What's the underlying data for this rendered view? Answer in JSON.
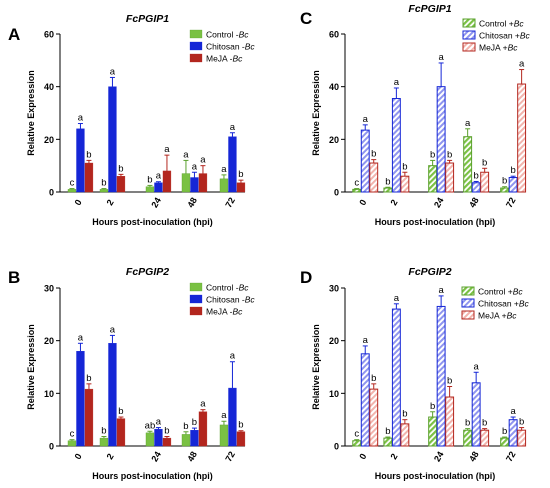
{
  "chart_data": [
    {
      "panel": "A",
      "type": "bar",
      "title": "FcPGIP1",
      "xlabel": "Hours post-inoculation (hpi)",
      "ylabel": "Relative Expression",
      "categories": [
        "0",
        "2",
        "24",
        "48",
        "72"
      ],
      "ylim": [
        0,
        60
      ],
      "yticks": [
        0,
        20,
        40,
        60
      ],
      "legend_position": "top-right",
      "series": [
        {
          "name": "Control -Bc",
          "color": "#7ac143",
          "pattern": "solid",
          "values": [
            1,
            1,
            2,
            7,
            5
          ],
          "errors": [
            0.3,
            0.3,
            0.5,
            5,
            1.5
          ],
          "labels": [
            "c",
            "b",
            "b",
            "a",
            "a"
          ]
        },
        {
          "name": "Chitosan -Bc",
          "color": "#1526d6",
          "pattern": "solid",
          "values": [
            24,
            40,
            3.5,
            5.5,
            21
          ],
          "errors": [
            2,
            3.5,
            0.4,
            2,
            1.5
          ],
          "labels": [
            "a",
            "a",
            "a",
            "a",
            "a"
          ]
        },
        {
          "name": "MeJA -Bc",
          "color": "#b3261e",
          "pattern": "solid",
          "values": [
            11,
            6,
            8,
            7,
            3.5
          ],
          "errors": [
            1,
            0.7,
            6,
            3,
            1
          ],
          "labels": [
            "b",
            "b",
            "a",
            "a",
            "b"
          ]
        }
      ]
    },
    {
      "panel": "C",
      "type": "bar",
      "title": "FcPGIP1",
      "xlabel": "Hours post-inoculation (hpi)",
      "ylabel": "Relative Expression",
      "categories": [
        "0",
        "2",
        "24",
        "48",
        "72"
      ],
      "ylim": [
        0,
        60
      ],
      "yticks": [
        0,
        20,
        40,
        60
      ],
      "legend_position": "top-left",
      "series": [
        {
          "name": "Control +Bc",
          "color": "#7ac143",
          "pattern": "hatch",
          "values": [
            1,
            1.5,
            10,
            21,
            1.5
          ],
          "errors": [
            0.3,
            0.3,
            2,
            3,
            0.5
          ],
          "labels": [
            "c",
            "b",
            "b",
            "a",
            "b"
          ]
        },
        {
          "name": "Chitosan +Bc",
          "color": "#1526d6",
          "pattern": "hatch",
          "values": [
            23.5,
            35.5,
            40,
            3.5,
            5.5
          ],
          "errors": [
            2,
            4,
            9,
            0.5,
            0.5
          ],
          "labels": [
            "a",
            "a",
            "a",
            "b",
            "b"
          ]
        },
        {
          "name": "MeJA +Bc",
          "color": "#b3261e",
          "pattern": "hatch",
          "values": [
            11,
            6,
            11,
            7.5,
            41
          ],
          "errors": [
            1.3,
            1.5,
            1,
            1.5,
            5.5
          ],
          "labels": [
            "b",
            "b",
            "b",
            "b",
            "a"
          ]
        }
      ]
    },
    {
      "panel": "B",
      "type": "bar",
      "title": "FcPGIP2",
      "xlabel": "Hours post-inoculation (hpi)",
      "ylabel": "Relative Expression",
      "categories": [
        "0",
        "2",
        "24",
        "48",
        "72"
      ],
      "ylim": [
        0,
        30
      ],
      "yticks": [
        0,
        10,
        20,
        30
      ],
      "legend_position": "top-right",
      "series": [
        {
          "name": "Control -Bc",
          "color": "#7ac143",
          "pattern": "solid",
          "values": [
            1,
            1.5,
            2.5,
            2.2,
            4
          ],
          "errors": [
            0.2,
            0.3,
            0.3,
            0.5,
            0.7
          ],
          "labels": [
            "c",
            "b",
            "ab",
            "b",
            "a"
          ]
        },
        {
          "name": "Chitosan -Bc",
          "color": "#1526d6",
          "pattern": "solid",
          "values": [
            18,
            19.5,
            3.2,
            3,
            11
          ],
          "errors": [
            1.5,
            1.5,
            0.3,
            0.4,
            5
          ],
          "labels": [
            "a",
            "a",
            "a",
            "b",
            "a"
          ]
        },
        {
          "name": "MeJA -Bc",
          "color": "#b3261e",
          "pattern": "solid",
          "values": [
            10.8,
            5.2,
            1.5,
            6.5,
            2.7
          ],
          "errors": [
            1,
            0.3,
            0.3,
            0.4,
            0.2
          ],
          "labels": [
            "b",
            "b",
            "b",
            "a",
            "b"
          ]
        }
      ]
    },
    {
      "panel": "D",
      "type": "bar",
      "title": "FcPGIP2",
      "xlabel": "Hours post-inoculation (hpi)",
      "ylabel": "Relative Expression",
      "categories": [
        "0",
        "2",
        "24",
        "48",
        "72"
      ],
      "ylim": [
        0,
        30
      ],
      "yticks": [
        0,
        10,
        20,
        30
      ],
      "legend_position": "top-right",
      "series": [
        {
          "name": "Control +Bc",
          "color": "#7ac143",
          "pattern": "hatch",
          "values": [
            1,
            1.5,
            5.5,
            3,
            1.5
          ],
          "errors": [
            0.2,
            0.2,
            1,
            0.3,
            0.2
          ],
          "labels": [
            "c",
            "b",
            "b",
            "b",
            "b"
          ]
        },
        {
          "name": "Chitosan +Bc",
          "color": "#1526d6",
          "pattern": "hatch",
          "values": [
            17.5,
            26,
            26.5,
            12,
            5
          ],
          "errors": [
            1.5,
            1,
            2,
            2,
            0.5
          ],
          "labels": [
            "a",
            "a",
            "a",
            "a",
            "a"
          ]
        },
        {
          "name": "MeJA +Bc",
          "color": "#b3261e",
          "pattern": "hatch",
          "values": [
            10.8,
            4.2,
            9.3,
            3,
            3
          ],
          "errors": [
            1,
            0.8,
            2,
            0.3,
            0.5
          ],
          "labels": [
            "b",
            "b",
            "b",
            "b",
            "b"
          ]
        }
      ]
    }
  ]
}
